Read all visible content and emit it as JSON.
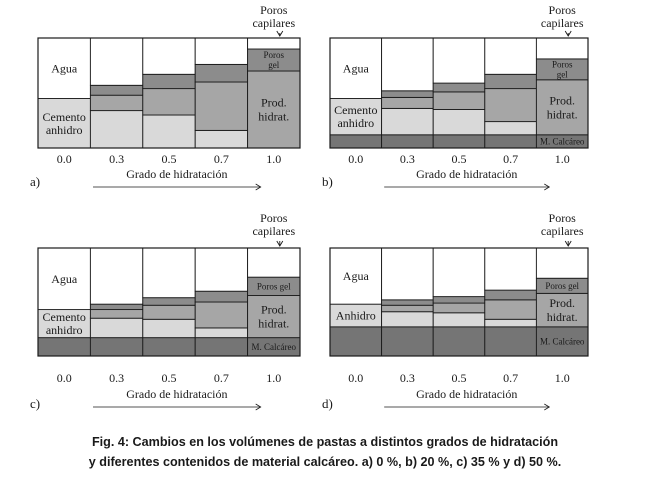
{
  "colors": {
    "agua": "#ffffff",
    "cemento": "#d9d9d9",
    "poros_capilares": "#ffffff",
    "poros_gel": "#8c8c8c",
    "prod_hidrat": "#a6a6a6",
    "calcareo": "#757575",
    "line": "#1a1a1a"
  },
  "panels": [
    {
      "id": "a",
      "letter": "a)",
      "axis_label": "Grado de hidratación",
      "degrees": [
        "0.0",
        "0.3",
        "0.5",
        "0.7",
        "1.0"
      ],
      "labels": {
        "agua": "Agua",
        "cemento": [
          "Cemento",
          "anhidro"
        ],
        "poros_capilares": [
          "Poros",
          "capilares"
        ],
        "poros_gel": [
          "Poros",
          "gel"
        ],
        "prod": [
          "Prod.",
          "hidrat."
        ]
      },
      "calcareo_fraction": 0.0,
      "columns": [
        {
          "degree": 0.0,
          "agua": 0.55,
          "gel": 0.0,
          "prod": 0.0,
          "cemento": 0.45
        },
        {
          "degree": 0.3,
          "agua": 0.43,
          "gel": 0.09,
          "prod": 0.14,
          "cemento": 0.34
        },
        {
          "degree": 0.5,
          "agua": 0.33,
          "gel": 0.13,
          "prod": 0.24,
          "cemento": 0.3
        },
        {
          "degree": 0.7,
          "agua": 0.24,
          "gel": 0.16,
          "prod": 0.44,
          "cemento": 0.16
        },
        {
          "degree": 1.0,
          "agua": 0.1,
          "gel": 0.2,
          "prod": 0.7,
          "cemento": 0.0
        }
      ]
    },
    {
      "id": "b",
      "letter": "b)",
      "axis_label": "Grado de hidratación",
      "degrees": [
        "0.0",
        "0.3",
        "0.5",
        "0.7",
        "1.0"
      ],
      "labels": {
        "agua": "Agua",
        "cemento": [
          "Cemento",
          "anhidro"
        ],
        "poros_capilares": [
          "Poros",
          "capilares"
        ],
        "poros_gel": [
          "Poros",
          "gel"
        ],
        "prod": [
          "Prod.",
          "hidrat."
        ],
        "calcareo": "M. Calcáreo"
      },
      "calcareo_fraction": 0.12,
      "columns": [
        {
          "degree": 0.0,
          "agua": 0.55,
          "gel": 0.0,
          "prod": 0.0,
          "cemento": 0.33
        },
        {
          "degree": 0.3,
          "agua": 0.48,
          "gel": 0.06,
          "prod": 0.1,
          "cemento": 0.24
        },
        {
          "degree": 0.5,
          "agua": 0.41,
          "gel": 0.08,
          "prod": 0.16,
          "cemento": 0.23
        },
        {
          "degree": 0.7,
          "agua": 0.33,
          "gel": 0.13,
          "prod": 0.3,
          "cemento": 0.12
        },
        {
          "degree": 1.0,
          "agua": 0.19,
          "gel": 0.19,
          "prod": 0.5,
          "cemento": 0.0
        }
      ]
    },
    {
      "id": "c",
      "letter": "c)",
      "axis_label": "Grado de hidratación",
      "degrees": [
        "0.0",
        "0.3",
        "0.5",
        "0.7",
        "1.0"
      ],
      "labels": {
        "agua": "Agua",
        "cemento": [
          "Cemento",
          "anhidro"
        ],
        "poros_capilares": [
          "Poros",
          "capilares"
        ],
        "poros_gel": "Poros gel",
        "prod": [
          "Prod.",
          "hidrat."
        ],
        "calcareo": "M. Calcáreo"
      },
      "calcareo_fraction": 0.17,
      "columns": [
        {
          "degree": 0.0,
          "agua": 0.57,
          "gel": 0.0,
          "prod": 0.0,
          "cemento": 0.26
        },
        {
          "degree": 0.3,
          "agua": 0.52,
          "gel": 0.05,
          "prod": 0.08,
          "cemento": 0.18
        },
        {
          "degree": 0.5,
          "agua": 0.46,
          "gel": 0.07,
          "prod": 0.13,
          "cemento": 0.17
        },
        {
          "degree": 0.7,
          "agua": 0.4,
          "gel": 0.1,
          "prod": 0.24,
          "cemento": 0.09
        },
        {
          "degree": 1.0,
          "agua": 0.27,
          "gel": 0.17,
          "prod": 0.39,
          "cemento": 0.0
        }
      ]
    },
    {
      "id": "d",
      "letter": "d)",
      "axis_label": "Grado de hidratación",
      "degrees": [
        "0.0",
        "0.3",
        "0.5",
        "0.7",
        "1.0"
      ],
      "labels": {
        "agua": "Agua",
        "cemento": "Anhidro",
        "poros_capilares": [
          "Poros",
          "capilares"
        ],
        "poros_gel": "Poros gel",
        "prod": [
          "Prod.",
          "hidrat."
        ],
        "calcareo": "M. Calcáreo"
      },
      "calcareo_fraction": 0.27,
      "columns": [
        {
          "degree": 0.0,
          "agua": 0.52,
          "gel": 0.0,
          "prod": 0.0,
          "cemento": 0.21
        },
        {
          "degree": 0.3,
          "agua": 0.48,
          "gel": 0.05,
          "prod": 0.06,
          "cemento": 0.14
        },
        {
          "degree": 0.5,
          "agua": 0.45,
          "gel": 0.06,
          "prod": 0.09,
          "cemento": 0.13
        },
        {
          "degree": 0.7,
          "agua": 0.39,
          "gel": 0.09,
          "prod": 0.18,
          "cemento": 0.07
        },
        {
          "degree": 1.0,
          "agua": 0.28,
          "gel": 0.14,
          "prod": 0.31,
          "cemento": 0.0
        }
      ]
    }
  ],
  "caption": {
    "line1": "Fig. 4: Cambios en los volúmenes de pastas a distintos grados de hidratación",
    "line2": "y diferentes contenidos de material calcáreo. a) 0 %, b) 20 %, c) 35 % y d) 50 %."
  }
}
